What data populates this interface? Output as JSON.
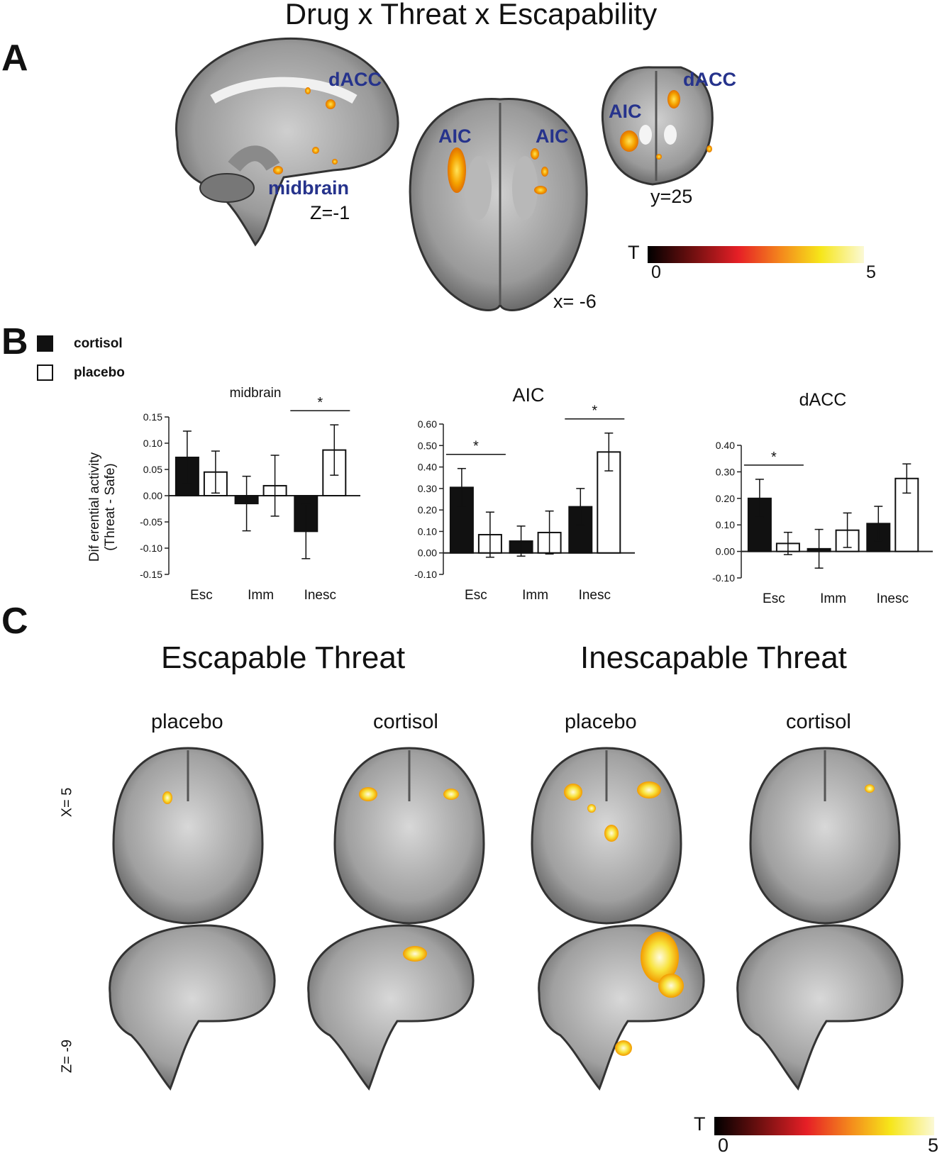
{
  "title": "Drug x Threat x Escapability",
  "panels": {
    "a": "A",
    "b": "B",
    "c": "C"
  },
  "panel_a": {
    "sagittal": {
      "labels": [
        "dACC",
        "midbrain"
      ],
      "coord": "Z=-1"
    },
    "axial": {
      "labels": [
        "AIC",
        "AIC"
      ],
      "coord": "x= -6"
    },
    "coronal": {
      "labels": [
        "dACC",
        "AIC"
      ],
      "coord": "y=25"
    },
    "colorbar": {
      "label": "T",
      "min": "0",
      "max": "5"
    }
  },
  "legend": [
    {
      "label": "cortisol",
      "fill": "#111111"
    },
    {
      "label": "placebo",
      "fill": "#ffffff"
    }
  ],
  "chart_data": [
    {
      "type": "bar",
      "title": "midbrain",
      "ylabel": "Differential activity (Threat - Safe)",
      "ylabel_lines": [
        "Dif erential activity",
        "(Threat - Safe)"
      ],
      "categories": [
        "Esc",
        "Imm",
        "Inesc"
      ],
      "ylim": [
        -0.15,
        0.15
      ],
      "yticks": [
        "0.15",
        "0.10",
        "0.05",
        "0.00",
        "-0.05",
        "-0.10",
        "-0.15"
      ],
      "ytick_values": [
        0.15,
        0.1,
        0.05,
        0.0,
        -0.05,
        -0.1,
        -0.15
      ],
      "series": [
        {
          "name": "cortisol",
          "values": [
            0.073,
            -0.015,
            -0.068
          ],
          "errors": [
            0.05,
            0.052,
            0.052
          ]
        },
        {
          "name": "placebo",
          "values": [
            0.045,
            0.019,
            0.087
          ],
          "errors": [
            0.04,
            0.058,
            0.048
          ]
        }
      ],
      "significance": [
        {
          "category": "Inesc",
          "label": "*"
        }
      ]
    },
    {
      "type": "bar",
      "title": "AIC",
      "categories": [
        "Esc",
        "Imm",
        "Inesc"
      ],
      "ylim": [
        -0.1,
        0.6
      ],
      "yticks": [
        "0.60",
        "0.50",
        "0.40",
        "0.30",
        "0.20",
        "0.10",
        "0.00",
        "-0.10"
      ],
      "ytick_values": [
        0.6,
        0.5,
        0.4,
        0.3,
        0.2,
        0.1,
        0.0,
        -0.1
      ],
      "series": [
        {
          "name": "cortisol",
          "values": [
            0.305,
            0.055,
            0.215
          ],
          "errors": [
            0.088,
            0.07,
            0.085
          ]
        },
        {
          "name": "placebo",
          "values": [
            0.085,
            0.095,
            0.47
          ],
          "errors": [
            0.105,
            0.1,
            0.088
          ]
        }
      ],
      "significance": [
        {
          "category": "Esc",
          "label": "*"
        },
        {
          "category": "Inesc",
          "label": "*"
        }
      ]
    },
    {
      "type": "bar",
      "title": "dACC",
      "categories": [
        "Esc",
        "Imm",
        "Inesc"
      ],
      "ylim": [
        -0.1,
        0.4
      ],
      "yticks": [
        "0.40",
        "0.30",
        "0.20",
        "0.10",
        "0.00",
        "-0.10"
      ],
      "ytick_values": [
        0.4,
        0.3,
        0.2,
        0.1,
        0.0,
        -0.1
      ],
      "series": [
        {
          "name": "cortisol",
          "values": [
            0.2,
            0.01,
            0.105
          ],
          "errors": [
            0.072,
            0.073,
            0.065
          ]
        },
        {
          "name": "placebo",
          "values": [
            0.03,
            0.08,
            0.275
          ],
          "errors": [
            0.042,
            0.065,
            0.055
          ]
        }
      ],
      "significance": [
        {
          "category": "Esc",
          "label": "*"
        }
      ]
    }
  ],
  "panel_c": {
    "groups": [
      "Escapable Threat",
      "Inescapable Threat"
    ],
    "conditions": [
      "placebo",
      "cortisol",
      "placebo",
      "cortisol"
    ],
    "row_labels": [
      "X= 5",
      "Z= -9"
    ],
    "colorbar": {
      "label": "T",
      "min": "0",
      "max": "5"
    }
  }
}
